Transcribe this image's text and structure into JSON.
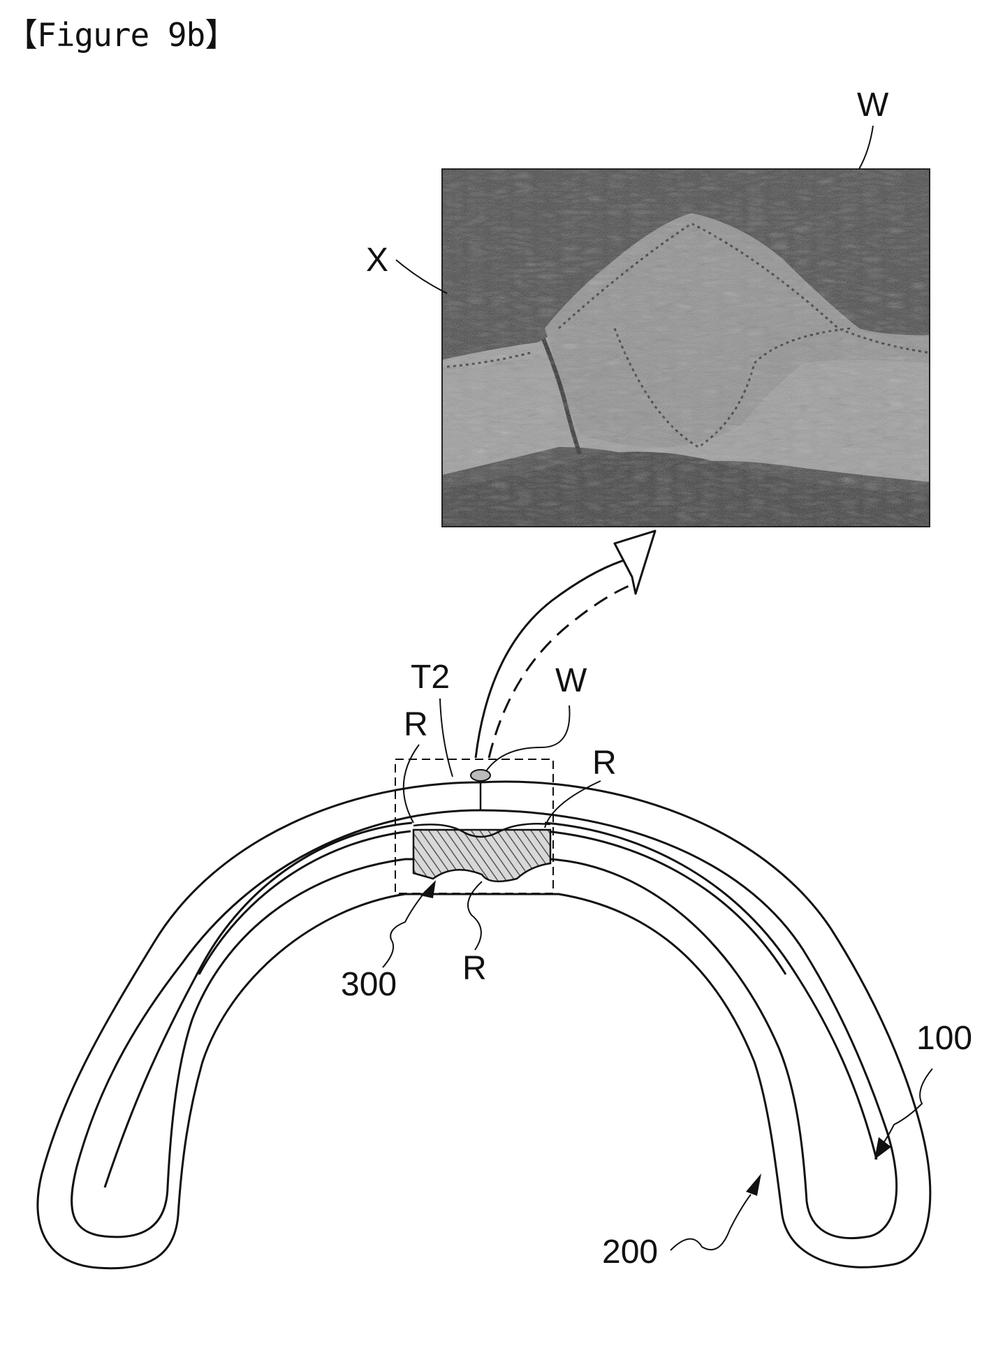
{
  "figure": {
    "title": "【Figure 9b】"
  },
  "labels": {
    "w_top": "W",
    "x": "X",
    "t2": "T2",
    "w_mid": "W",
    "r_left": "R",
    "r_right": "R",
    "r_bottom": "R",
    "ref_300": "300",
    "ref_100": "100",
    "ref_200": "200"
  },
  "colors": {
    "line": "#111111",
    "photo_dark": "#3a3a3a",
    "photo_light": "#a8a8a8",
    "hatch": "#555555"
  }
}
